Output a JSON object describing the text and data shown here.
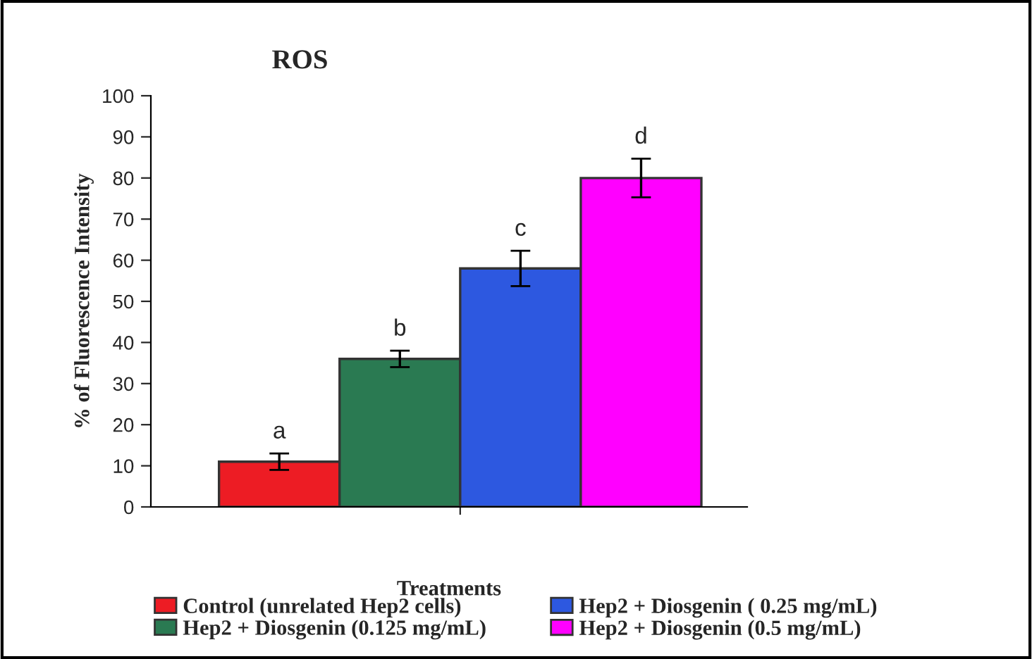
{
  "chart_data": {
    "type": "bar",
    "title": "ROS",
    "xlabel": "Treatments",
    "ylabel": "% of Fluorescence Intensity",
    "categories": [
      null
    ],
    "series": [
      {
        "name": "Control (unrelated Hep2 cells)",
        "color": "#ed1c24",
        "values": [
          11
        ],
        "errors": [
          2
        ],
        "value_labels": [
          "a"
        ]
      },
      {
        "name": "Hep2 + Diosgenin (0.125 mg/mL)",
        "color": "#2a7a52",
        "values": [
          36
        ],
        "errors": [
          2
        ],
        "value_labels": [
          "b"
        ]
      },
      {
        "name": "Hep2 + Diosgenin ( 0.25 mg/mL)",
        "color": "#2d58e0",
        "values": [
          58
        ],
        "errors": [
          4.3
        ],
        "value_labels": [
          "c"
        ]
      },
      {
        "name": "Hep2 + Diosgenin (0.5 mg/mL)",
        "color": "#ff00ff",
        "values": [
          80
        ],
        "errors": [
          4.7
        ],
        "value_labels": [
          "d"
        ]
      }
    ],
    "ylim": [
      0,
      100
    ],
    "yticks": [
      0,
      10,
      20,
      30,
      40,
      50,
      60,
      70,
      80,
      90,
      100
    ],
    "grid": false,
    "legend": "bottom"
  }
}
